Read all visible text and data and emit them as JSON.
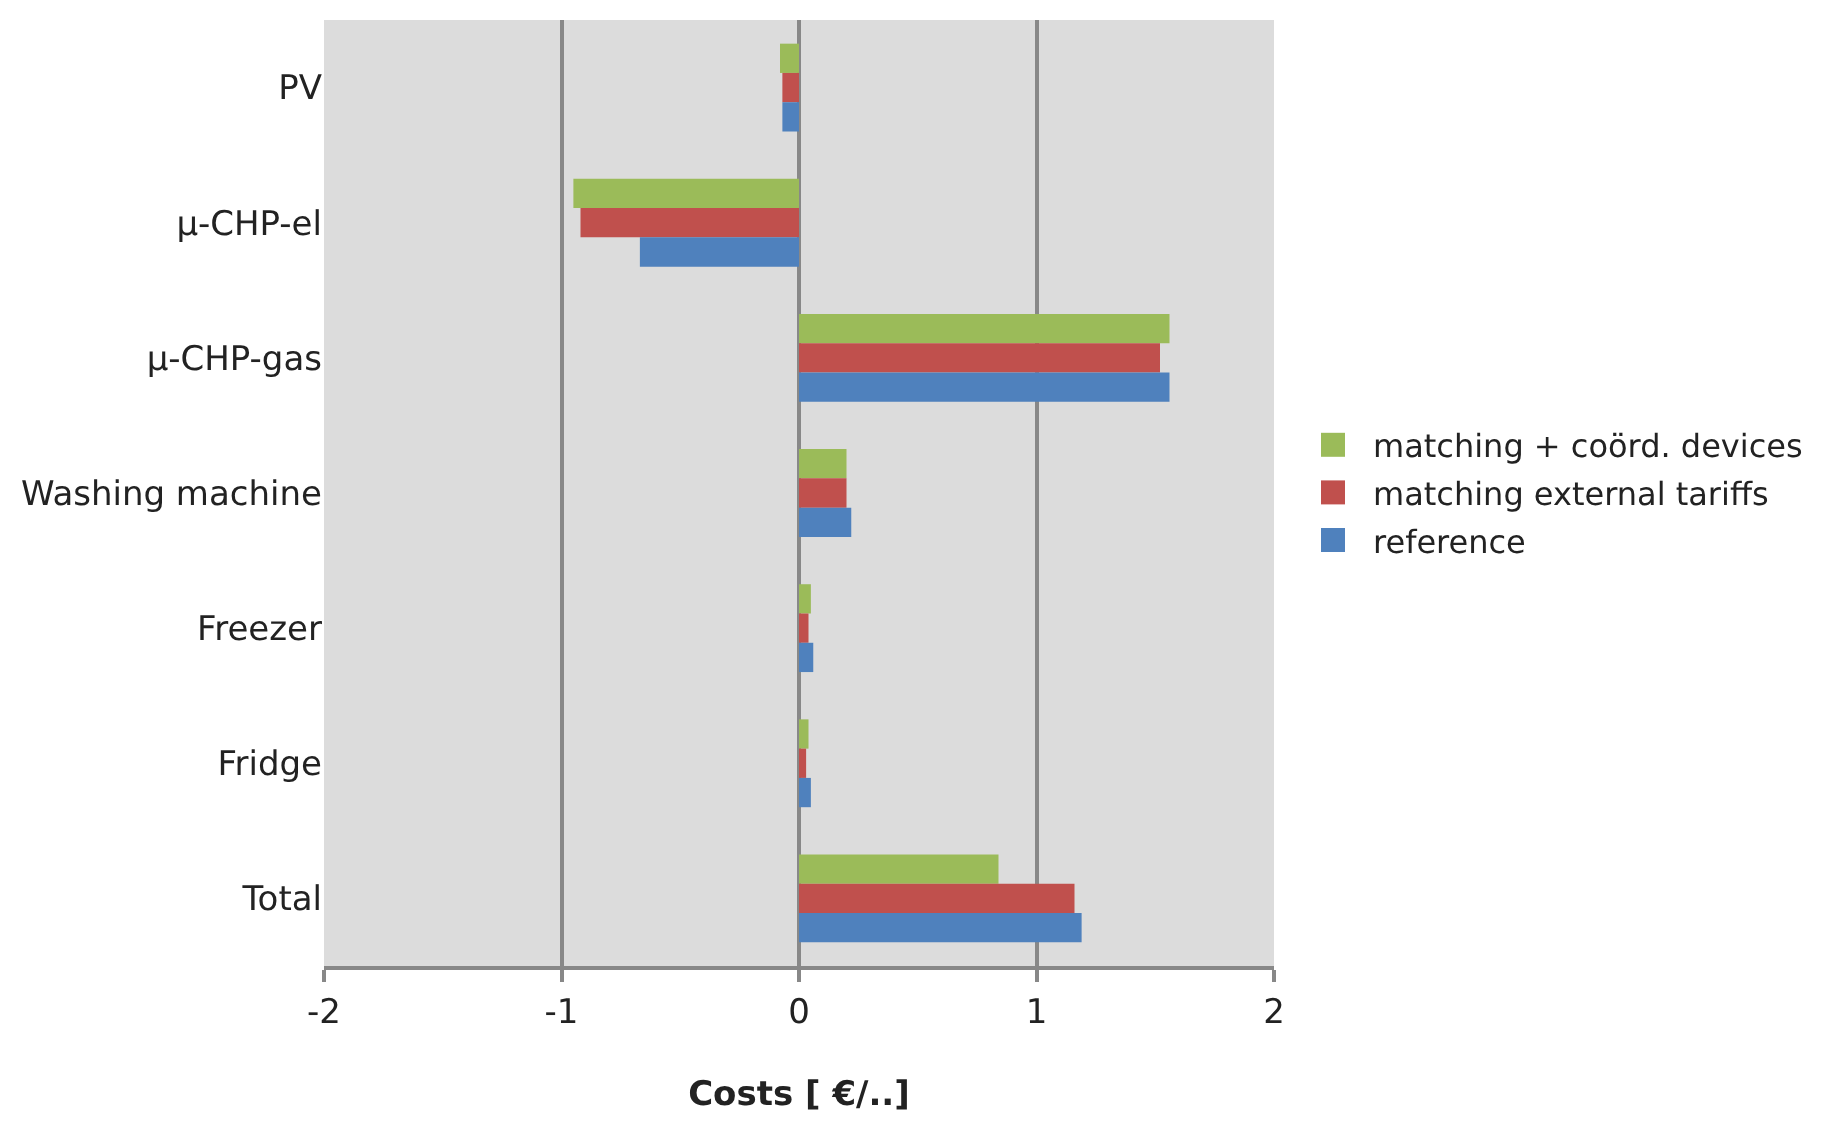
{
  "chart_data": {
    "type": "bar",
    "orientation": "horizontal",
    "xlabel": "Costs [ €/..]",
    "categories": [
      "PV",
      "µ-CHP-el",
      "µ-CHP-gas",
      "Washing machine",
      "Freezer",
      "Fridge",
      "Total"
    ],
    "series": [
      {
        "name": "matching + coörd. devices",
        "color": "#9bbb59",
        "values": [
          -0.08,
          -0.95,
          1.56,
          0.2,
          0.05,
          0.04,
          0.84
        ]
      },
      {
        "name": "matching external tariffs",
        "color": "#c0504d",
        "values": [
          -0.07,
          -0.92,
          1.52,
          0.2,
          0.04,
          0.03,
          1.16
        ]
      },
      {
        "name": "reference",
        "color": "#4f81bd",
        "values": [
          -0.07,
          -0.67,
          1.56,
          0.22,
          0.06,
          0.05,
          1.19
        ]
      }
    ],
    "xlim": [
      -2,
      2
    ],
    "xticks": [
      -2,
      -1,
      0,
      1,
      2
    ],
    "grid": "x",
    "legend": "right"
  }
}
